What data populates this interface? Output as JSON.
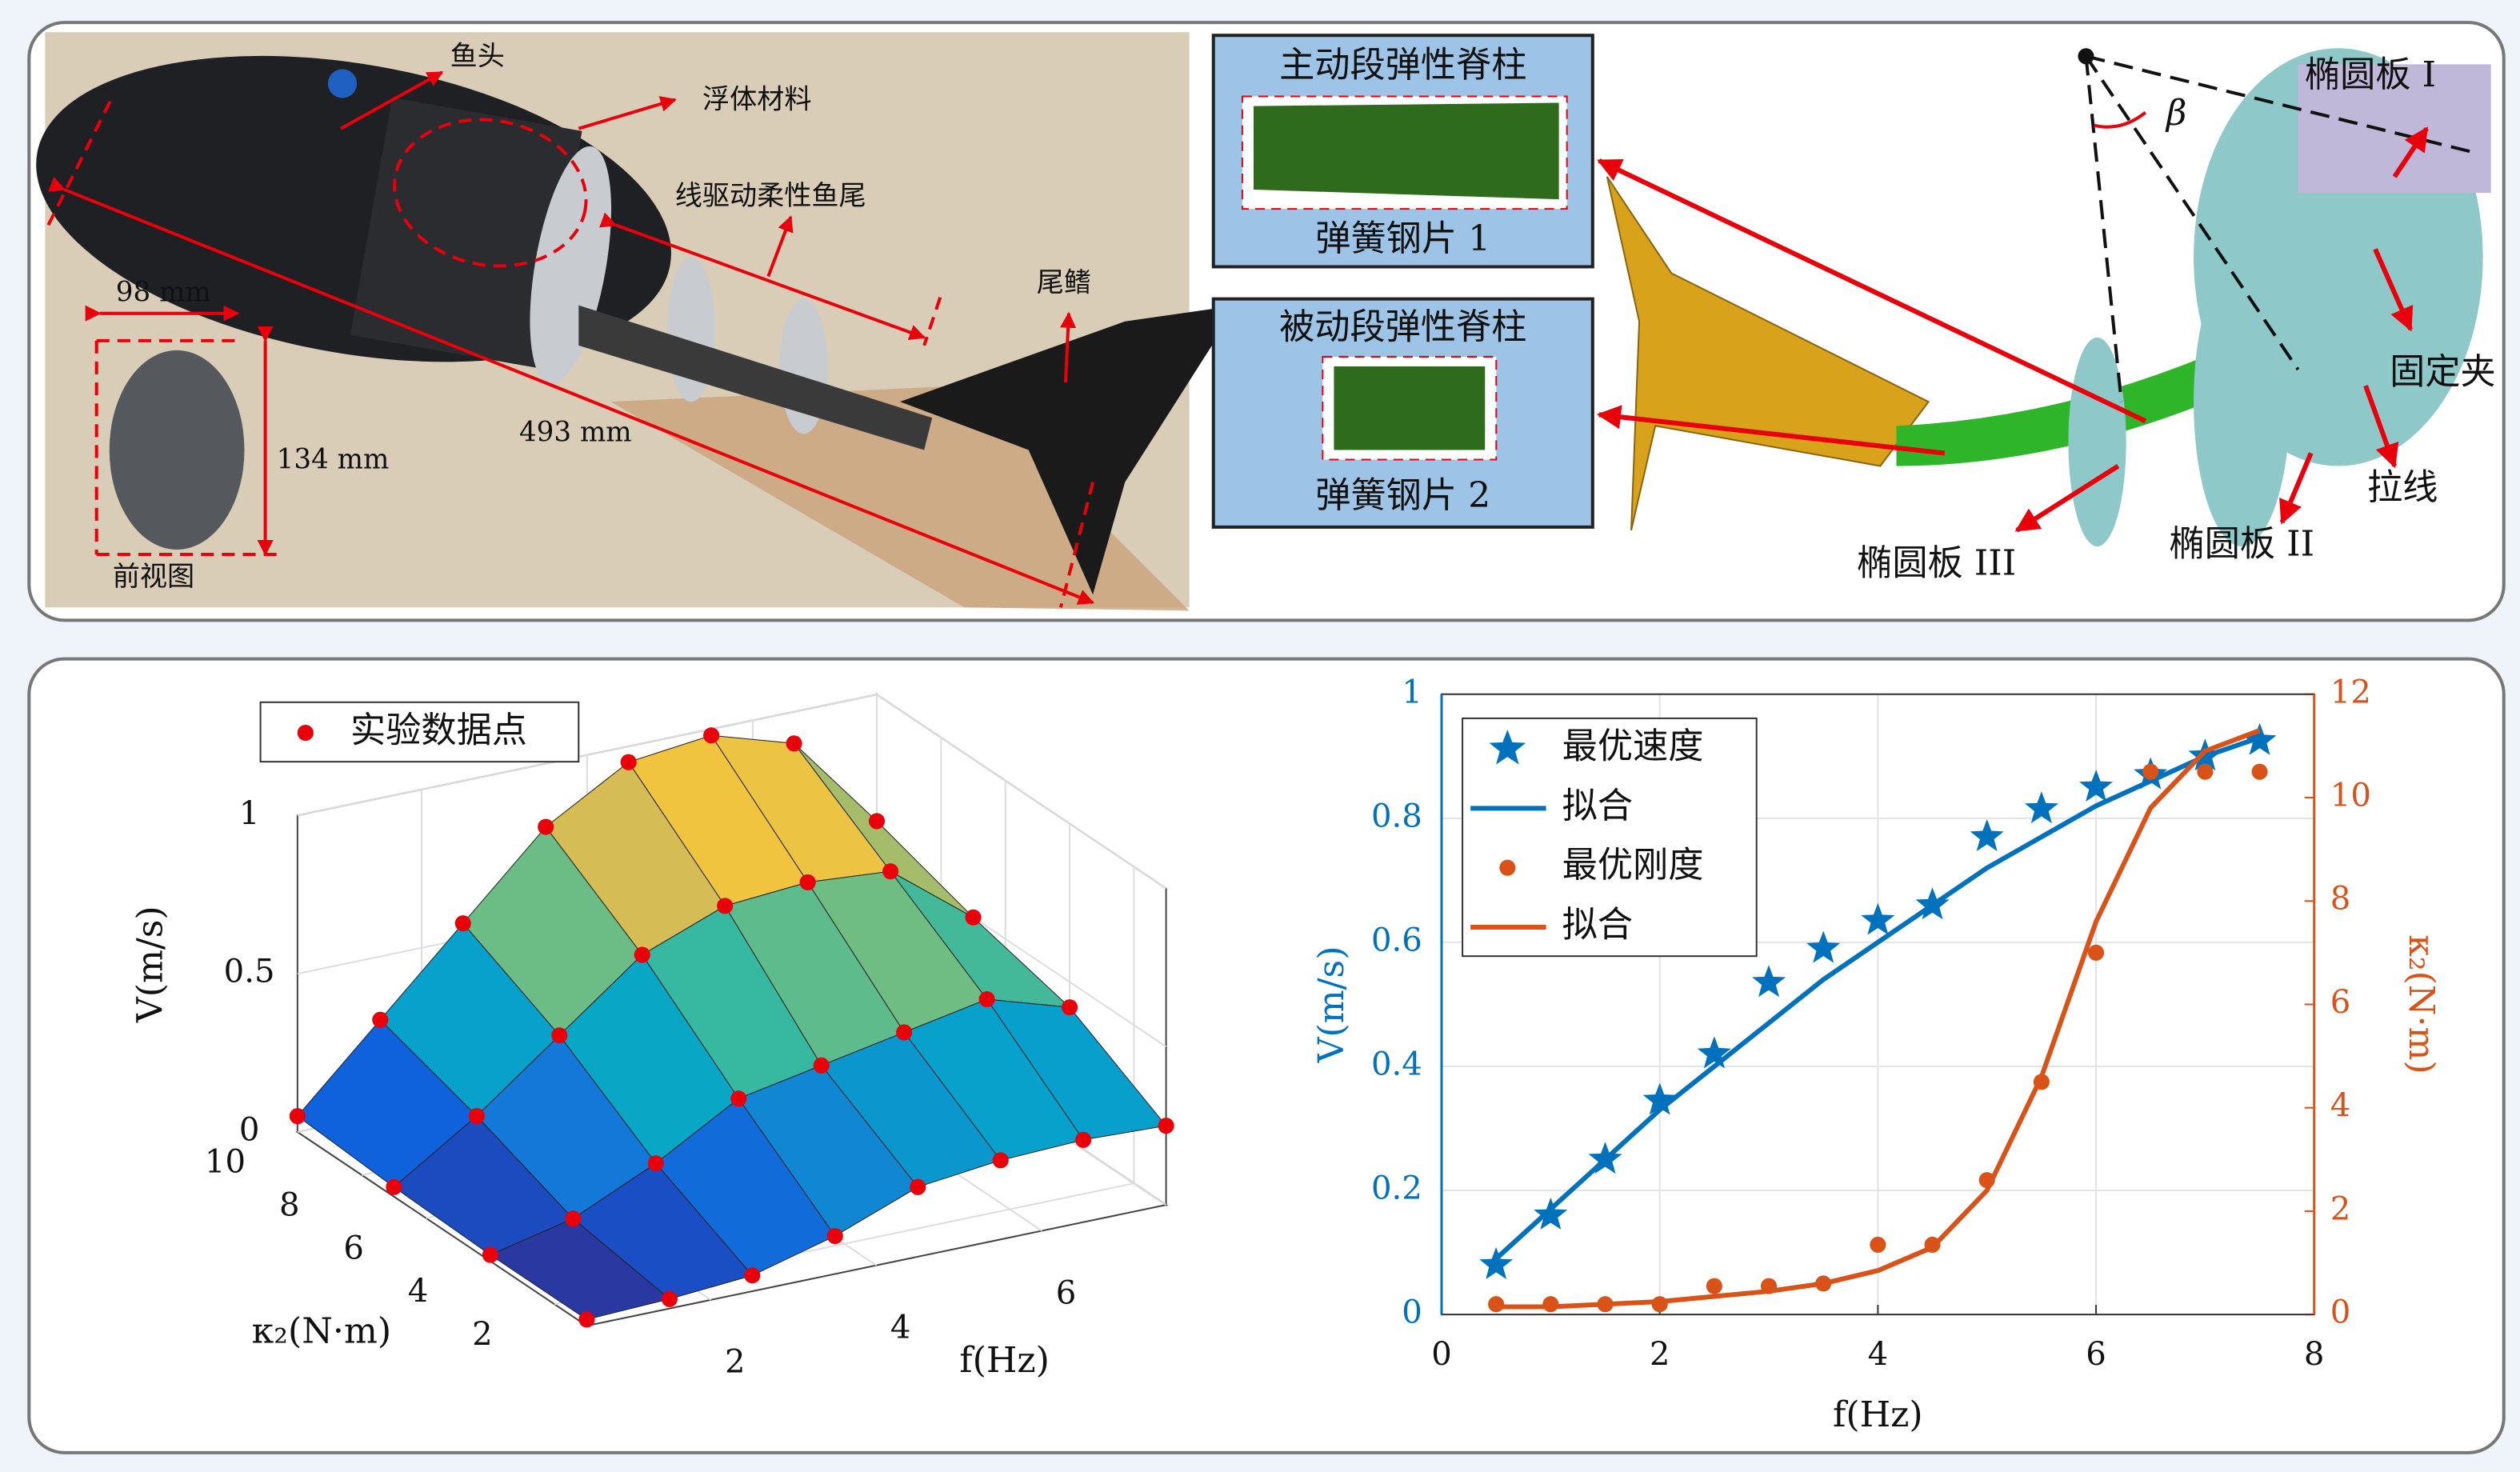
{
  "top_panel": {
    "photo": {
      "fish_head": "鱼头",
      "float_material": "浮体材料",
      "tail": "线驱动柔性鱼尾",
      "fin": "尾鳍",
      "width": "98 mm",
      "height": "134 mm",
      "length": "493 mm",
      "front_view": "前视图"
    },
    "model": {
      "active_spine": "主动段弹性脊柱",
      "spring1": "弹簧钢片 1",
      "passive_spine": "被动段弹性脊柱",
      "spring2": "弹簧钢片 2",
      "plate1": "椭圆板 I",
      "plate2": "椭圆板 II",
      "plate3": "椭圆板 III",
      "clamp": "固定夹",
      "wire": "拉线",
      "angle": "β"
    }
  },
  "chart_data": [
    {
      "type": "surface",
      "x": [
        0.5,
        1.5,
        2.5,
        3.5,
        4.5,
        5.5,
        6.5,
        7.5
      ],
      "y": [
        1,
        4,
        7,
        10
      ],
      "values": [
        [
          0.02,
          0.03,
          0.05,
          0.12,
          0.22,
          0.25,
          0.26,
          0.25
        ],
        [
          0.02,
          0.08,
          0.2,
          0.35,
          0.4,
          0.45,
          0.5,
          0.42
        ],
        [
          0.03,
          0.2,
          0.4,
          0.6,
          0.7,
          0.72,
          0.7,
          0.5
        ],
        [
          0.05,
          0.3,
          0.55,
          0.8,
          0.95,
          0.98,
          0.9,
          0.6
        ]
      ],
      "points_name": "实验数据点",
      "points_color": "#e8000b",
      "xlim": [
        0.5,
        7.5
      ],
      "xticks": [
        2,
        4,
        6
      ],
      "ylim": [
        1,
        10
      ],
      "yticks": [
        2,
        4,
        6,
        8,
        10
      ],
      "zlim": [
        0,
        1
      ],
      "zticks": [
        0,
        0.5,
        1
      ],
      "xlabel": "f(Hz)",
      "ylabel": "κ₂(N·m)",
      "zlabel": "V(m/s)",
      "grid": true
    },
    {
      "type": "line",
      "x": [
        0.5,
        1,
        1.5,
        2,
        2.5,
        3,
        3.5,
        4,
        4.5,
        5,
        5.5,
        6,
        6.5,
        7,
        7.5
      ],
      "series": [
        {
          "name": "最优速度",
          "color": "#0072BD",
          "marker": "star",
          "values": [
            0.08,
            0.16,
            0.25,
            0.345,
            0.42,
            0.535,
            0.59,
            0.635,
            0.66,
            0.77,
            0.815,
            0.85,
            0.87,
            0.9,
            0.925
          ]
        },
        {
          "name": "拟合",
          "color": "#0072BD",
          "values": [
            0.09,
            0.17,
            0.25,
            0.33,
            0.4,
            0.47,
            0.54,
            0.6,
            0.66,
            0.72,
            0.77,
            0.82,
            0.86,
            0.9,
            0.93
          ]
        },
        {
          "name": "最优刚度",
          "color": "#D95319",
          "marker": "dot",
          "axis": "y2",
          "values": [
            0.2,
            0.2,
            0.2,
            0.2,
            0.55,
            0.55,
            0.6,
            1.35,
            1.35,
            2.6,
            4.5,
            7,
            10.5,
            10.5,
            10.5
          ]
        },
        {
          "name": "拟合",
          "color": "#D95319",
          "axis": "y2",
          "values": [
            0.15,
            0.15,
            0.2,
            0.25,
            0.35,
            0.45,
            0.6,
            0.85,
            1.3,
            2.4,
            4.6,
            7.6,
            9.8,
            10.9,
            11.3
          ]
        }
      ],
      "xlim": [
        0,
        8
      ],
      "xticks": [
        0,
        2,
        4,
        6,
        8
      ],
      "ylim": [
        0,
        1
      ],
      "yticks": [
        0,
        0.2,
        0.4,
        0.6,
        0.8,
        1
      ],
      "y2lim": [
        0,
        12
      ],
      "y2ticks": [
        0,
        2,
        4,
        6,
        8,
        10,
        12
      ],
      "xlabel": "f(Hz)",
      "ylabel": "V(m/s)",
      "y2label": "κ₂(N·m)",
      "grid": true,
      "legend": "upper left"
    }
  ]
}
